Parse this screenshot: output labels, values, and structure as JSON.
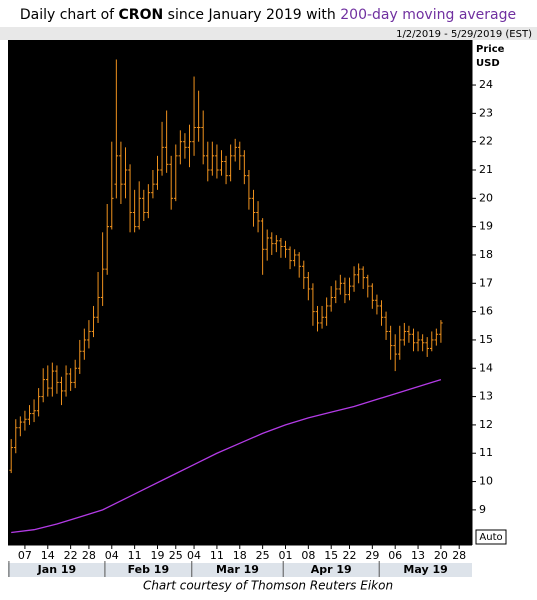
{
  "chart_data": {
    "type": "ohlc",
    "title_prefix": "Daily chart of",
    "ticker": "CRON",
    "title_middle": "since January 2019 with",
    "title_ma": "200-day moving average",
    "date_range": "1/2/2019 - 5/29/2019 (EST)",
    "y_axis_label": "Price",
    "y_axis_unit": "USD",
    "auto_label": "Auto",
    "credit": "Chart courtesy of Thomson Reuters Eikon",
    "color": "#f0921e",
    "background": "#000000",
    "x": [
      0,
      1,
      2,
      3,
      4,
      5,
      6,
      7,
      8,
      9,
      10,
      11,
      12,
      13,
      14,
      15,
      16,
      17,
      18,
      19,
      20,
      21,
      22,
      23,
      24,
      25,
      26,
      27,
      28,
      29,
      30,
      31,
      32,
      33,
      34,
      35,
      36,
      37,
      38,
      39,
      40,
      41,
      42,
      43,
      44,
      45,
      46,
      47,
      48,
      49,
      50,
      51,
      52,
      53,
      54,
      55,
      56,
      57,
      58,
      59,
      60,
      61,
      62,
      63,
      64,
      65,
      66,
      67,
      68,
      69,
      70,
      71,
      72,
      73,
      74,
      75,
      76,
      77,
      78,
      79,
      80,
      81,
      82,
      83,
      84,
      85,
      86,
      87,
      88,
      89,
      90,
      91,
      92,
      93,
      94
    ],
    "open": [
      10.4,
      11.2,
      11.9,
      12.1,
      12.2,
      12.4,
      12.5,
      13.0,
      13.6,
      13.3,
      13.9,
      13.5,
      13.2,
      13.8,
      13.5,
      14.0,
      14.6,
      15.0,
      15.3,
      15.8,
      16.5,
      17.5,
      19.0,
      20.5,
      21.5,
      20.5,
      21.0,
      19.5,
      19.0,
      20.0,
      19.5,
      20.2,
      20.5,
      21.0,
      21.8,
      21.2,
      20.0,
      21.5,
      22.0,
      21.8,
      22.0,
      22.5,
      22.5,
      21.5,
      21.0,
      21.5,
      21.0,
      21.3,
      20.8,
      21.5,
      21.8,
      21.5,
      20.8,
      20.0,
      19.5,
      19.2,
      18.2,
      18.6,
      18.4,
      18.5,
      18.3,
      18.2,
      17.8,
      18.0,
      17.6,
      17.2,
      16.8,
      16.0,
      15.6,
      15.8,
      16.2,
      16.5,
      16.8,
      17.0,
      16.6,
      16.9,
      17.3,
      17.5,
      17.2,
      16.9,
      16.4,
      16.2,
      15.8,
      15.3,
      14.8,
      14.5,
      15.0,
      15.3,
      15.2,
      14.9,
      15.0,
      14.9,
      14.7,
      15.0,
      15.2
    ],
    "high": [
      11.5,
      12.2,
      12.3,
      12.5,
      12.7,
      12.9,
      13.3,
      14.0,
      14.1,
      14.2,
      14.1,
      13.7,
      14.1,
      14.0,
      14.3,
      15.0,
      15.4,
      15.7,
      16.2,
      17.4,
      18.8,
      19.8,
      22.0,
      24.9,
      22.0,
      21.8,
      21.2,
      20.3,
      20.6,
      20.3,
      20.5,
      21.0,
      21.5,
      22.7,
      23.1,
      21.5,
      21.9,
      22.4,
      22.3,
      22.6,
      24.3,
      23.8,
      23.1,
      22.0,
      22.0,
      21.9,
      21.7,
      21.5,
      21.9,
      22.1,
      22.0,
      21.7,
      21.0,
      20.3,
      19.9,
      19.3,
      18.9,
      18.8,
      18.7,
      18.6,
      18.5,
      18.3,
      18.2,
      18.1,
      17.8,
      17.4,
      17.0,
      16.2,
      16.2,
      16.5,
      16.9,
      17.1,
      17.3,
      17.2,
      17.2,
      17.6,
      17.7,
      17.6,
      17.3,
      17.0,
      16.6,
      16.4,
      16.0,
      15.5,
      15.2,
      15.5,
      15.6,
      15.5,
      15.4,
      15.3,
      15.2,
      15.1,
      15.3,
      15.4,
      15.7
    ],
    "low": [
      10.3,
      11.0,
      11.6,
      11.8,
      12.0,
      12.1,
      12.3,
      12.8,
      13.0,
      13.0,
      13.1,
      12.7,
      13.0,
      13.2,
      13.3,
      13.8,
      14.3,
      14.7,
      15.1,
      15.6,
      16.2,
      17.3,
      18.9,
      20.0,
      19.8,
      20.0,
      18.8,
      18.8,
      18.9,
      19.2,
      19.3,
      20.0,
      20.3,
      20.8,
      20.9,
      19.6,
      19.9,
      21.2,
      21.4,
      21.1,
      21.5,
      22.0,
      21.2,
      20.6,
      20.8,
      20.7,
      20.8,
      20.5,
      20.6,
      21.3,
      21.0,
      20.5,
      19.6,
      19.0,
      18.8,
      17.3,
      17.8,
      18.0,
      18.1,
      17.9,
      17.9,
      17.5,
      17.6,
      17.2,
      16.8,
      16.4,
      15.5,
      15.3,
      15.4,
      15.5,
      16.0,
      16.3,
      16.6,
      16.3,
      16.4,
      16.7,
      17.0,
      16.8,
      16.5,
      16.1,
      15.9,
      15.5,
      15.0,
      14.3,
      13.9,
      14.3,
      14.8,
      14.9,
      14.6,
      14.6,
      14.6,
      14.4,
      14.6,
      14.8,
      14.9
    ],
    "close": [
      11.2,
      11.9,
      12.1,
      12.2,
      12.4,
      12.5,
      13.0,
      13.6,
      13.3,
      13.9,
      13.5,
      13.2,
      13.8,
      13.5,
      14.0,
      14.6,
      15.0,
      15.3,
      15.8,
      16.5,
      17.5,
      19.0,
      20.0,
      21.5,
      20.5,
      21.0,
      19.5,
      19.0,
      20.0,
      19.5,
      20.2,
      20.5,
      21.0,
      21.8,
      21.2,
      20.0,
      21.5,
      22.0,
      21.8,
      22.0,
      22.5,
      22.5,
      21.5,
      21.0,
      21.5,
      21.0,
      21.3,
      20.8,
      21.5,
      21.8,
      21.5,
      20.8,
      20.0,
      19.5,
      19.2,
      18.2,
      18.6,
      18.4,
      18.5,
      18.3,
      18.2,
      17.8,
      18.0,
      17.6,
      17.2,
      16.8,
      16.0,
      15.6,
      15.8,
      16.2,
      16.5,
      16.8,
      17.0,
      16.6,
      16.9,
      17.3,
      17.5,
      17.2,
      16.9,
      16.4,
      16.2,
      15.8,
      15.3,
      14.8,
      14.5,
      15.0,
      15.3,
      15.2,
      14.9,
      15.0,
      14.9,
      14.7,
      15.0,
      15.2,
      15.6
    ],
    "moving_average": {
      "color": "#b33be6",
      "x": [
        0,
        5,
        10,
        15,
        20,
        25,
        30,
        35,
        40,
        45,
        50,
        55,
        60,
        65,
        70,
        75,
        80,
        85,
        90,
        94
      ],
      "values": [
        8.2,
        8.3,
        8.5,
        8.75,
        9.0,
        9.4,
        9.8,
        10.2,
        10.6,
        11.0,
        11.35,
        11.7,
        12.0,
        12.25,
        12.45,
        12.65,
        12.9,
        13.15,
        13.4,
        13.6
      ]
    },
    "xlim": [
      -0.7,
      100.8
    ],
    "ylim": [
      7.76,
      25.59
    ],
    "yticks": [
      9,
      10,
      11,
      12,
      13,
      14,
      15,
      16,
      17,
      18,
      19,
      20,
      21,
      22,
      23,
      24
    ],
    "xticks": [
      {
        "value": 3,
        "label": "07"
      },
      {
        "value": 8,
        "label": "14"
      },
      {
        "value": 13,
        "label": "22"
      },
      {
        "value": 17,
        "label": "28"
      },
      {
        "value": 22,
        "label": "04"
      },
      {
        "value": 27,
        "label": "11"
      },
      {
        "value": 32,
        "label": "19"
      },
      {
        "value": 36,
        "label": "25"
      },
      {
        "value": 40,
        "label": "04"
      },
      {
        "value": 45,
        "label": "11"
      },
      {
        "value": 50,
        "label": "18"
      },
      {
        "value": 55,
        "label": "25"
      },
      {
        "value": 60,
        "label": "01"
      },
      {
        "value": 65,
        "label": "08"
      },
      {
        "value": 70,
        "label": "15"
      },
      {
        "value": 74,
        "label": "22"
      },
      {
        "value": 79,
        "label": "29"
      },
      {
        "value": 84,
        "label": "06"
      },
      {
        "value": 89,
        "label": "13"
      },
      {
        "value": 94,
        "label": "20"
      },
      {
        "value": 98,
        "label": "28"
      }
    ],
    "months": [
      {
        "value": 0,
        "label": "Jan 19"
      },
      {
        "value": 21,
        "label": "Feb 19"
      },
      {
        "value": 40,
        "label": "Mar 19"
      },
      {
        "value": 60,
        "label": "Apr 19"
      },
      {
        "value": 81,
        "label": "May 19"
      }
    ]
  }
}
